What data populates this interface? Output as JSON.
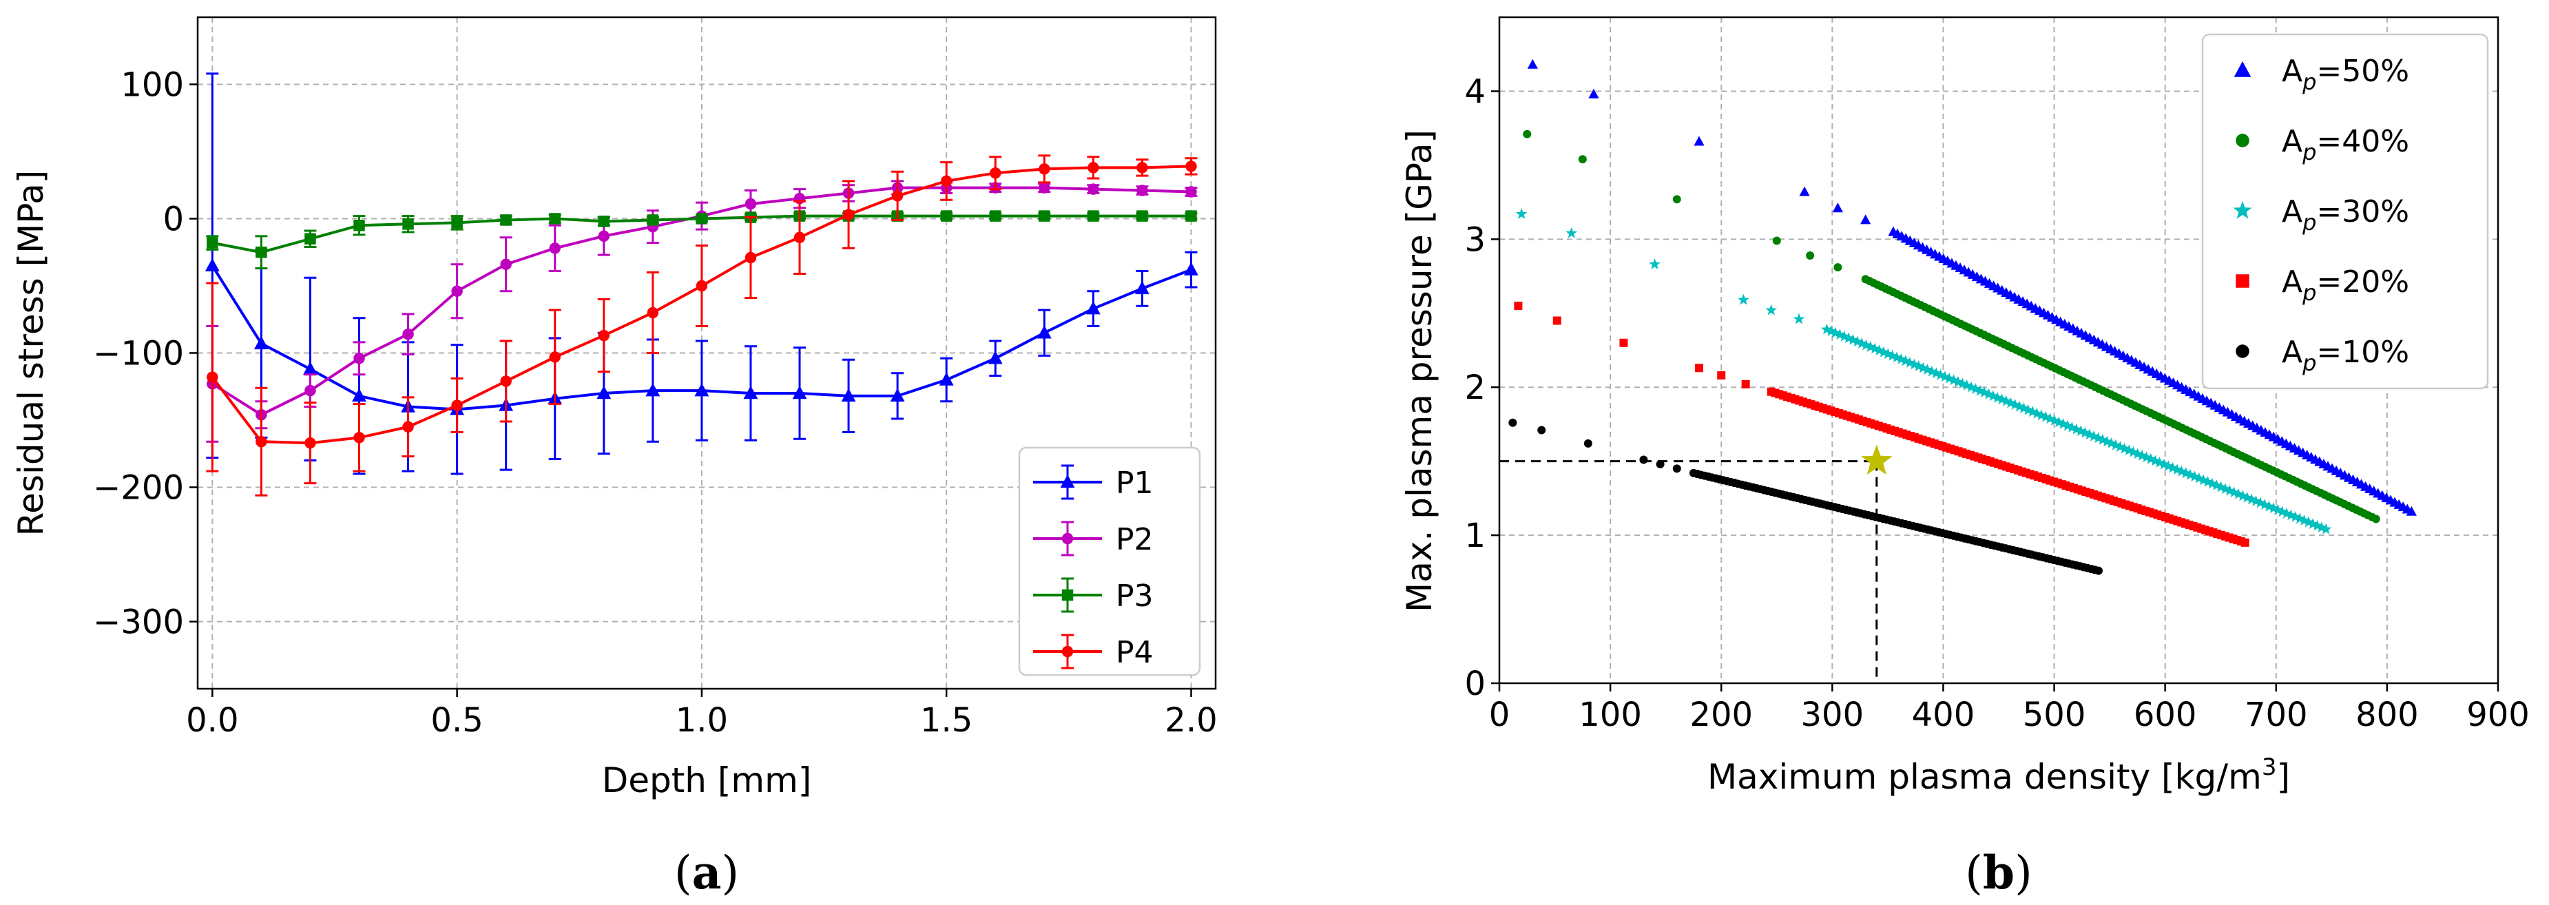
{
  "chart_data": [
    {
      "type": "line",
      "xlabel": "Depth [mm]",
      "ylabel": "Residual stress [MPa]",
      "xlim": [
        -0.03,
        2.05
      ],
      "ylim": [
        -350,
        150
      ],
      "xticks": [
        0.0,
        0.5,
        1.0,
        1.5,
        2.0
      ],
      "xtick_labels": [
        "0.0",
        "0.5",
        "1.0",
        "1.5",
        "2.0"
      ],
      "yticks": [
        100,
        0,
        -100,
        -200,
        -300
      ],
      "ytick_labels": [
        "100",
        "0",
        "−100",
        "−200",
        "−300"
      ],
      "grid": true,
      "legend": "bottom-right",
      "caption": "(a)",
      "x": [
        0.0,
        0.1,
        0.2,
        0.3,
        0.4,
        0.5,
        0.6,
        0.7,
        0.8,
        0.9,
        1.0,
        1.1,
        1.2,
        1.3,
        1.4,
        1.5,
        1.6,
        1.7,
        1.8,
        1.9,
        2.0
      ],
      "series": [
        {
          "name": "P1",
          "color": "#0000ff",
          "marker": "triangle",
          "values": [
            -35,
            -93,
            -112,
            -132,
            -140,
            -142,
            -139,
            -134,
            -130,
            -128,
            -128,
            -130,
            -130,
            -132,
            -132,
            -120,
            -104,
            -85,
            -67,
            -52,
            -38
          ],
          "errors": [
            143,
            70,
            68,
            58,
            48,
            48,
            48,
            45,
            45,
            38,
            37,
            35,
            34,
            27,
            17,
            16,
            13,
            17,
            13,
            13,
            13
          ]
        },
        {
          "name": "P2",
          "color": "#bf00bf",
          "marker": "circle",
          "values": [
            -123,
            -146,
            -128,
            -104,
            -86,
            -54,
            -34,
            -22,
            -13,
            -6,
            2,
            11,
            15,
            19,
            23,
            23,
            23,
            23,
            22,
            21,
            20
          ],
          "errors": [
            43,
            10,
            12,
            12,
            15,
            20,
            20,
            17,
            14,
            12,
            10,
            10,
            7,
            6,
            5,
            4,
            3,
            3,
            3,
            3,
            3
          ]
        },
        {
          "name": "P3",
          "color": "#008000",
          "marker": "square",
          "values": [
            -18,
            -25,
            -15,
            -5,
            -4,
            -3,
            -1,
            0,
            -2,
            -1,
            0,
            1,
            2,
            2,
            2,
            2,
            2,
            2,
            2,
            2,
            2
          ],
          "errors": [
            5,
            12,
            6,
            7,
            6,
            5,
            3,
            3,
            3,
            2,
            2,
            2,
            2,
            2,
            2,
            2,
            2,
            2,
            2,
            2,
            2
          ]
        },
        {
          "name": "P4",
          "color": "#ff0000",
          "marker": "circle",
          "values": [
            -118,
            -166,
            -167,
            -163,
            -155,
            -139,
            -121,
            -103,
            -87,
            -70,
            -50,
            -29,
            -14,
            3,
            17,
            28,
            34,
            37,
            38,
            38,
            39
          ],
          "errors": [
            70,
            40,
            30,
            25,
            22,
            20,
            30,
            35,
            27,
            30,
            30,
            30,
            27,
            25,
            18,
            14,
            12,
            10,
            8,
            6,
            6
          ]
        }
      ]
    },
    {
      "type": "scatter",
      "xlabel": "Maximum plasma density [kg/m³]",
      "xlabel_main": "Maximum plasma density [kg/m",
      "xlabel_sup": "3",
      "xlabel_end": "]",
      "ylabel": "Max. plasma pressure [GPa]",
      "xlim": [
        0,
        900
      ],
      "ylim": [
        0,
        4.5
      ],
      "xticks": [
        0,
        100,
        200,
        300,
        400,
        500,
        600,
        700,
        800,
        900
      ],
      "xtick_labels": [
        "0",
        "100",
        "200",
        "300",
        "400",
        "500",
        "600",
        "700",
        "800",
        "900"
      ],
      "yticks": [
        0,
        1,
        2,
        3,
        4
      ],
      "ytick_labels": [
        "0",
        "1",
        "2",
        "3",
        "4"
      ],
      "grid": true,
      "legend": "top-right",
      "caption": "(b)",
      "series": [
        {
          "name": "Aₚ=50%",
          "label_main": "A",
          "label_sub": "p",
          "label_end": "=50%",
          "color": "#0000ff",
          "marker": "triangle",
          "start_points": [
            [
              30,
              4.18
            ],
            [
              85,
              3.98
            ],
            [
              180,
              3.66
            ],
            [
              275,
              3.32
            ],
            [
              305,
              3.21
            ],
            [
              330,
              3.13
            ]
          ],
          "curve": {
            "x0": 355,
            "y0": 3.05,
            "x1": 822,
            "y1": 1.16,
            "n": 125
          }
        },
        {
          "name": "Aₚ=40%",
          "label_main": "A",
          "label_sub": "p",
          "label_end": "=40%",
          "color": "#008000",
          "marker": "circle",
          "start_points": [
            [
              25,
              3.71
            ],
            [
              75,
              3.54
            ],
            [
              160,
              3.27
            ],
            [
              250,
              2.99
            ],
            [
              280,
              2.89
            ],
            [
              305,
              2.81
            ]
          ],
          "curve": {
            "x0": 330,
            "y0": 2.73,
            "x1": 790,
            "y1": 1.11,
            "n": 130
          }
        },
        {
          "name": "Aₚ=30%",
          "label_main": "A",
          "label_sub": "p",
          "label_end": "=30%",
          "color": "#00bfbf",
          "marker": "star",
          "start_points": [
            [
              20,
              3.17
            ],
            [
              65,
              3.04
            ],
            [
              140,
              2.83
            ],
            [
              220,
              2.59
            ],
            [
              245,
              2.52
            ],
            [
              270,
              2.46
            ]
          ],
          "curve": {
            "x0": 295,
            "y0": 2.39,
            "x1": 745,
            "y1": 1.04,
            "n": 115
          }
        },
        {
          "name": "Aₚ=20%",
          "label_main": "A",
          "label_sub": "p",
          "label_end": "=20%",
          "color": "#ff0000",
          "marker": "square",
          "start_points": [
            [
              17,
              2.55
            ],
            [
              52,
              2.45
            ],
            [
              112,
              2.3
            ],
            [
              180,
              2.13
            ],
            [
              200,
              2.08
            ],
            [
              222,
              2.02
            ]
          ],
          "curve": {
            "x0": 245,
            "y0": 1.97,
            "x1": 672,
            "y1": 0.95,
            "n": 120
          }
        },
        {
          "name": "Aₚ=10%",
          "label_main": "A",
          "label_sub": "p",
          "label_end": "=10%",
          "color": "#000000",
          "marker": "circle",
          "start_points": [
            [
              12,
              1.76
            ],
            [
              38,
              1.71
            ],
            [
              80,
              1.62
            ],
            [
              130,
              1.51
            ],
            [
              145,
              1.48
            ],
            [
              160,
              1.45
            ]
          ],
          "curve": {
            "x0": 175,
            "y0": 1.42,
            "x1": 540,
            "y1": 0.76,
            "n": 110
          }
        }
      ],
      "marked_point": {
        "x": 340,
        "y": 1.5,
        "color": "#bfbf00",
        "marker": "star"
      }
    }
  ]
}
